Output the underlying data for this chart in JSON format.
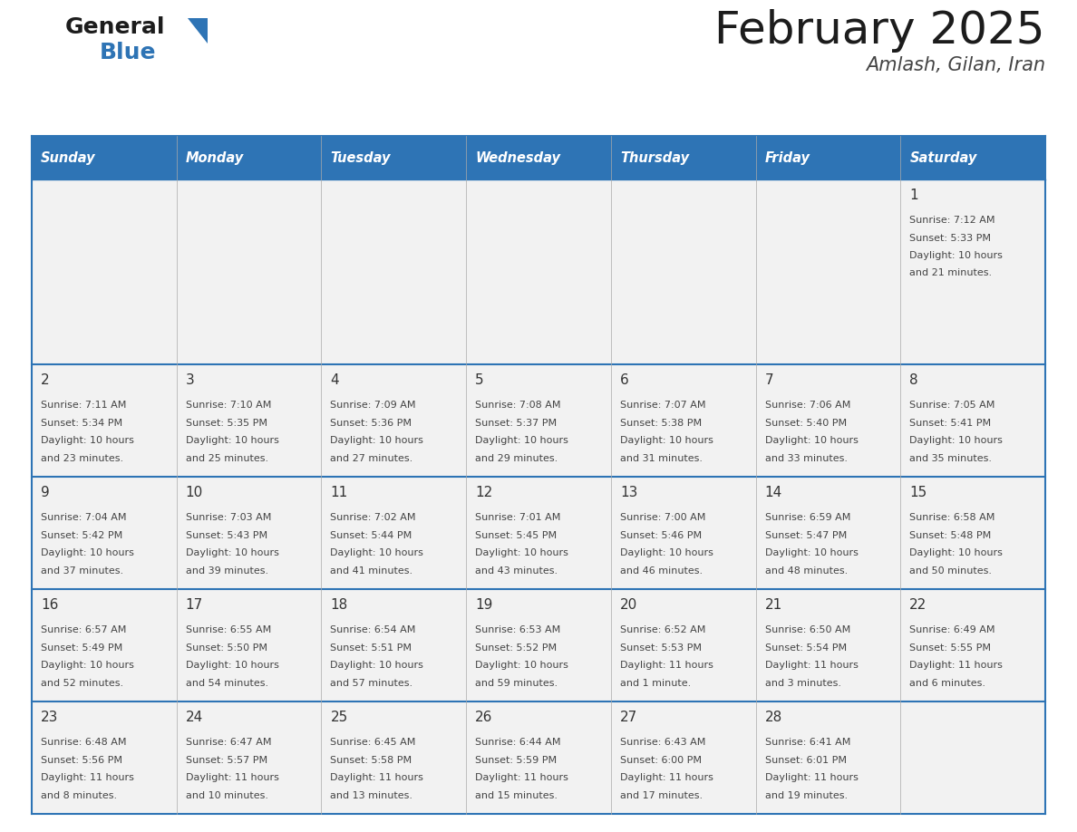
{
  "title": "February 2025",
  "subtitle": "Amlash, Gilan, Iran",
  "weekdays": [
    "Sunday",
    "Monday",
    "Tuesday",
    "Wednesday",
    "Thursday",
    "Friday",
    "Saturday"
  ],
  "header_bg": "#2E74B5",
  "header_text_color": "#FFFFFF",
  "cell_bg": "#F2F2F2",
  "divider_color": "#2E74B5",
  "text_color": "#444444",
  "day_num_color": "#333333",
  "days": [
    {
      "day": 1,
      "col": 6,
      "row": 0,
      "sunrise": "7:12 AM",
      "sunset": "5:33 PM",
      "daylight": "10 hours and 21 minutes."
    },
    {
      "day": 2,
      "col": 0,
      "row": 1,
      "sunrise": "7:11 AM",
      "sunset": "5:34 PM",
      "daylight": "10 hours and 23 minutes."
    },
    {
      "day": 3,
      "col": 1,
      "row": 1,
      "sunrise": "7:10 AM",
      "sunset": "5:35 PM",
      "daylight": "10 hours and 25 minutes."
    },
    {
      "day": 4,
      "col": 2,
      "row": 1,
      "sunrise": "7:09 AM",
      "sunset": "5:36 PM",
      "daylight": "10 hours and 27 minutes."
    },
    {
      "day": 5,
      "col": 3,
      "row": 1,
      "sunrise": "7:08 AM",
      "sunset": "5:37 PM",
      "daylight": "10 hours and 29 minutes."
    },
    {
      "day": 6,
      "col": 4,
      "row": 1,
      "sunrise": "7:07 AM",
      "sunset": "5:38 PM",
      "daylight": "10 hours and 31 minutes."
    },
    {
      "day": 7,
      "col": 5,
      "row": 1,
      "sunrise": "7:06 AM",
      "sunset": "5:40 PM",
      "daylight": "10 hours and 33 minutes."
    },
    {
      "day": 8,
      "col": 6,
      "row": 1,
      "sunrise": "7:05 AM",
      "sunset": "5:41 PM",
      "daylight": "10 hours and 35 minutes."
    },
    {
      "day": 9,
      "col": 0,
      "row": 2,
      "sunrise": "7:04 AM",
      "sunset": "5:42 PM",
      "daylight": "10 hours and 37 minutes."
    },
    {
      "day": 10,
      "col": 1,
      "row": 2,
      "sunrise": "7:03 AM",
      "sunset": "5:43 PM",
      "daylight": "10 hours and 39 minutes."
    },
    {
      "day": 11,
      "col": 2,
      "row": 2,
      "sunrise": "7:02 AM",
      "sunset": "5:44 PM",
      "daylight": "10 hours and 41 minutes."
    },
    {
      "day": 12,
      "col": 3,
      "row": 2,
      "sunrise": "7:01 AM",
      "sunset": "5:45 PM",
      "daylight": "10 hours and 43 minutes."
    },
    {
      "day": 13,
      "col": 4,
      "row": 2,
      "sunrise": "7:00 AM",
      "sunset": "5:46 PM",
      "daylight": "10 hours and 46 minutes."
    },
    {
      "day": 14,
      "col": 5,
      "row": 2,
      "sunrise": "6:59 AM",
      "sunset": "5:47 PM",
      "daylight": "10 hours and 48 minutes."
    },
    {
      "day": 15,
      "col": 6,
      "row": 2,
      "sunrise": "6:58 AM",
      "sunset": "5:48 PM",
      "daylight": "10 hours and 50 minutes."
    },
    {
      "day": 16,
      "col": 0,
      "row": 3,
      "sunrise": "6:57 AM",
      "sunset": "5:49 PM",
      "daylight": "10 hours and 52 minutes."
    },
    {
      "day": 17,
      "col": 1,
      "row": 3,
      "sunrise": "6:55 AM",
      "sunset": "5:50 PM",
      "daylight": "10 hours and 54 minutes."
    },
    {
      "day": 18,
      "col": 2,
      "row": 3,
      "sunrise": "6:54 AM",
      "sunset": "5:51 PM",
      "daylight": "10 hours and 57 minutes."
    },
    {
      "day": 19,
      "col": 3,
      "row": 3,
      "sunrise": "6:53 AM",
      "sunset": "5:52 PM",
      "daylight": "10 hours and 59 minutes."
    },
    {
      "day": 20,
      "col": 4,
      "row": 3,
      "sunrise": "6:52 AM",
      "sunset": "5:53 PM",
      "daylight": "11 hours and 1 minute."
    },
    {
      "day": 21,
      "col": 5,
      "row": 3,
      "sunrise": "6:50 AM",
      "sunset": "5:54 PM",
      "daylight": "11 hours and 3 minutes."
    },
    {
      "day": 22,
      "col": 6,
      "row": 3,
      "sunrise": "6:49 AM",
      "sunset": "5:55 PM",
      "daylight": "11 hours and 6 minutes."
    },
    {
      "day": 23,
      "col": 0,
      "row": 4,
      "sunrise": "6:48 AM",
      "sunset": "5:56 PM",
      "daylight": "11 hours and 8 minutes."
    },
    {
      "day": 24,
      "col": 1,
      "row": 4,
      "sunrise": "6:47 AM",
      "sunset": "5:57 PM",
      "daylight": "11 hours and 10 minutes."
    },
    {
      "day": 25,
      "col": 2,
      "row": 4,
      "sunrise": "6:45 AM",
      "sunset": "5:58 PM",
      "daylight": "11 hours and 13 minutes."
    },
    {
      "day": 26,
      "col": 3,
      "row": 4,
      "sunrise": "6:44 AM",
      "sunset": "5:59 PM",
      "daylight": "11 hours and 15 minutes."
    },
    {
      "day": 27,
      "col": 4,
      "row": 4,
      "sunrise": "6:43 AM",
      "sunset": "6:00 PM",
      "daylight": "11 hours and 17 minutes."
    },
    {
      "day": 28,
      "col": 5,
      "row": 4,
      "sunrise": "6:41 AM",
      "sunset": "6:01 PM",
      "daylight": "11 hours and 19 minutes."
    }
  ],
  "num_rows": 5,
  "fig_width": 11.88,
  "fig_height": 9.18,
  "dpi": 100
}
